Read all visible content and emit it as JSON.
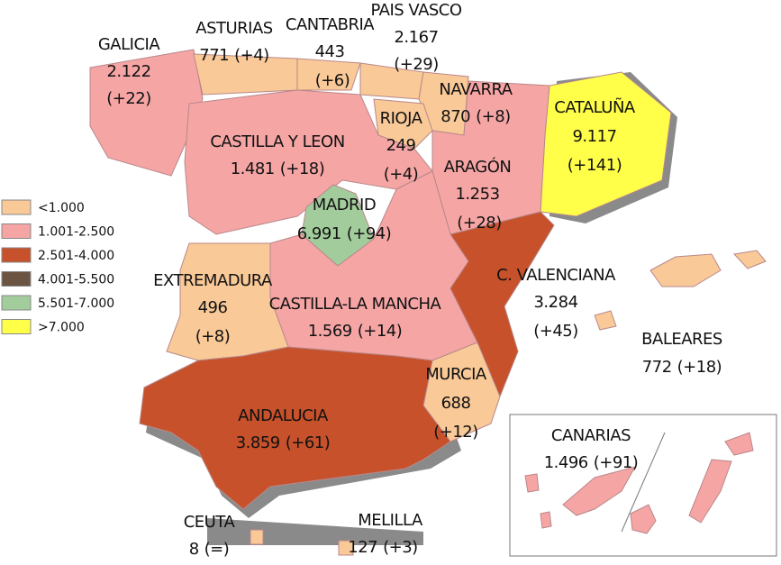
{
  "regions": [
    {
      "name": "GALICIA",
      "total": "2.122",
      "change": "(+22)"
    },
    {
      "name": "ASTURIAS",
      "total": "771",
      "change": "(+4)"
    },
    {
      "name": "CANTABRIA",
      "total": "443",
      "change": "(+6)"
    },
    {
      "name": "PAIS VASCO",
      "total": "2.167",
      "change": "(+29)"
    },
    {
      "name": "NAVARRA",
      "total": "870",
      "change": "(+8)"
    },
    {
      "name": "RIOJA",
      "total": "249",
      "change": "(+4)"
    },
    {
      "name": "CATALUÑA",
      "total": "9.117",
      "change": "(+141)"
    },
    {
      "name": "CASTILLA Y LEON",
      "total": "1.481",
      "change": "(+18)"
    },
    {
      "name": "ARAGÓN",
      "total": "1.253",
      "change": "(+28)"
    },
    {
      "name": "MADRID",
      "total": "6.991",
      "change": "(+94)"
    },
    {
      "name": "C. VALENCIANA",
      "total": "3.284",
      "change": "(+45)"
    },
    {
      "name": "EXTREMADURA",
      "total": "496",
      "change": "(+8)"
    },
    {
      "name": "CASTILLA-LA MANCHA",
      "total": "1.569",
      "change": "(+14)"
    },
    {
      "name": "BALEARES",
      "total": "772",
      "change": "(+18)"
    },
    {
      "name": "MURCIA",
      "total": "688",
      "change": "(+12)"
    },
    {
      "name": "ANDALUCIA",
      "total": "3.859",
      "change": "(+61)"
    },
    {
      "name": "CANARIAS",
      "total": "1.496",
      "change": "(+91)"
    },
    {
      "name": "CEUTA",
      "total": "8",
      "change": "(=)"
    },
    {
      "name": "MELILLA",
      "total": "127",
      "change": "(+3)"
    }
  ],
  "legend": {
    "items": [
      {
        "label": "<1.000",
        "color": "#f9c998"
      },
      {
        "label": "1.001-2.500",
        "color": "#f6a5a5"
      },
      {
        "label": "2.501-4.000",
        "color": "#c6512b"
      },
      {
        "label": "4.001-5.500",
        "color": "#6b5442"
      },
      {
        "label": "5.501-7.000",
        "color": "#a3cc9c"
      },
      {
        "label": ">7.000",
        "color": "#ffff4a"
      }
    ]
  }
}
